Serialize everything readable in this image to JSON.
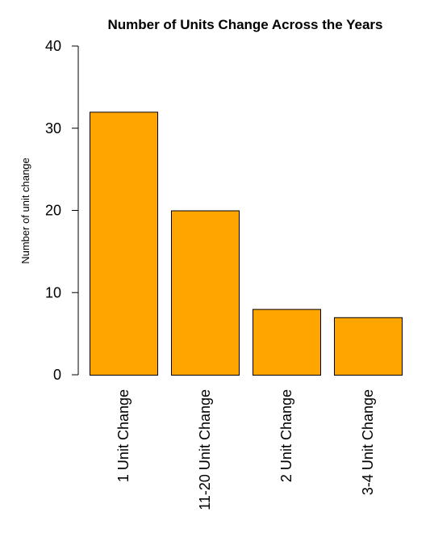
{
  "chart_data": {
    "type": "bar",
    "title": "Number of Units Change Across the Years",
    "xlabel": "",
    "ylabel": "Number of unit change",
    "categories": [
      "1 Unit Change",
      "11-20 Unit Change",
      "2 Unit Change",
      "3-4 Unit Change"
    ],
    "values": [
      32,
      20,
      8,
      7
    ],
    "ylim": [
      0,
      40
    ],
    "yticks": [
      0,
      10,
      20,
      30,
      40
    ],
    "bar_color": "#FFA500",
    "bar_edge_color": "#000000",
    "grid": false,
    "x_tick_orientation": "vertical"
  }
}
